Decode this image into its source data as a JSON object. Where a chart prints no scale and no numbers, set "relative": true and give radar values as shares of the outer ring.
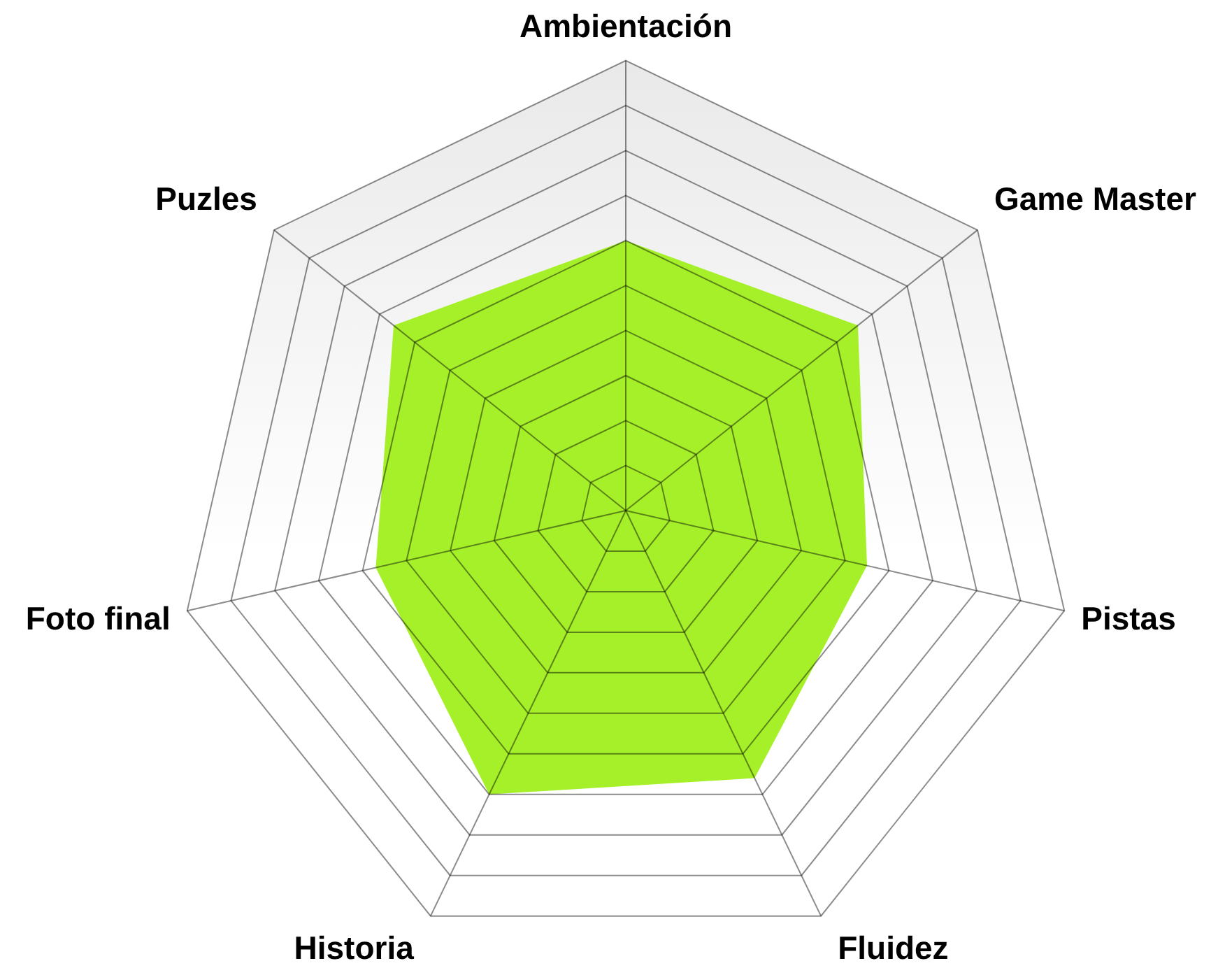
{
  "chart_data": {
    "type": "radar",
    "categories": [
      "Ambientación",
      "Game Master",
      "Pistas",
      "Fluidez",
      "Historia",
      "Foto final",
      "Puzles"
    ],
    "relative": true,
    "grid": true,
    "series": [
      {
        "color": "#a6f02a",
        "values": [
          0.6,
          0.66,
          0.55,
          0.66,
          0.7,
          0.57,
          0.66
        ]
      }
    ]
  }
}
